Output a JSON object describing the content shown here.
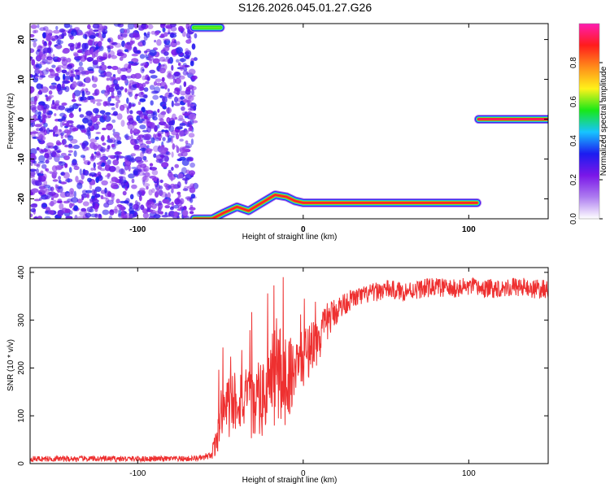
{
  "title": "S126.2026.045.01.27.G26",
  "chart_data": [
    {
      "type": "heatmap",
      "xlabel": "Height of straight line (km)",
      "ylabel": "Frequency (Hz)",
      "xlim": [
        -165,
        148
      ],
      "ylim": [
        -25,
        24
      ],
      "xticks": [
        -100,
        0,
        100
      ],
      "xtick_labels": [
        "-100",
        "0",
        "100"
      ],
      "yticks": [
        -20,
        -10,
        0,
        10,
        20
      ],
      "ytick_labels": [
        "-20",
        "-10",
        "0",
        "10",
        "20"
      ],
      "colorbar": {
        "label": "Normalized spectral amplitude",
        "range": [
          0,
          1
        ],
        "ticks": [
          0.0,
          0.2,
          0.4,
          0.6,
          0.8
        ],
        "tick_labels": [
          "0.0",
          "0.2",
          "0.4",
          "0.6",
          "0.8"
        ],
        "colors": [
          "#ffffff",
          "#ad7cf0",
          "#7a17e8",
          "#1c1cf0",
          "#17c4ff",
          "#18e818",
          "#fff21a",
          "#ff8c1a",
          "#ff1c1c",
          "#ff1cb2"
        ]
      },
      "features": [
        {
          "name": "noise",
          "x_range": [
            -165,
            -65
          ],
          "y_range": [
            -25,
            24
          ],
          "level": 0.18
        },
        {
          "name": "trace",
          "points": [
            [
              -66,
              -25
            ],
            [
              -55,
              -25
            ],
            [
              -48,
              -23.5
            ],
            [
              -40,
              -22
            ],
            [
              -33,
              -23
            ],
            [
              -25,
              -21
            ],
            [
              -17,
              -19
            ],
            [
              -10,
              -19.5
            ],
            [
              -5,
              -20.5
            ],
            [
              0,
              -21
            ],
            [
              10,
              -21
            ],
            [
              30,
              -21
            ],
            [
              55,
              -21
            ],
            [
              65,
              -21
            ],
            [
              105,
              -21
            ]
          ],
          "level": 0.85
        },
        {
          "name": "trace",
          "points": [
            [
              106,
              0
            ],
            [
              148,
              0
            ]
          ],
          "level": 0.9
        },
        {
          "name": "trace",
          "points": [
            [
              -66,
              23
            ],
            [
              -50,
              23
            ]
          ],
          "level": 0.55
        }
      ]
    },
    {
      "type": "line",
      "xlabel": "Height of straight line (km)",
      "ylabel": "SNR (10 * v/v)",
      "xlim": [
        -165,
        148
      ],
      "ylim": [
        0,
        410
      ],
      "xticks": [
        -100,
        0,
        100
      ],
      "xtick_labels": [
        "-100",
        "0",
        "100"
      ],
      "yticks": [
        0,
        100,
        200,
        300,
        400
      ],
      "ytick_labels": [
        "0",
        "100",
        "200",
        "300",
        "400"
      ],
      "line_color": "#ee3030",
      "x": [
        -165,
        -150,
        -130,
        -110,
        -90,
        -70,
        -60,
        -55,
        -52,
        -50,
        -45,
        -40,
        -35,
        -30,
        -25,
        -20,
        -15,
        -13,
        -10,
        -5,
        0,
        5,
        10,
        15,
        20,
        25,
        30,
        40,
        50,
        60,
        70,
        80,
        90,
        100,
        110,
        120,
        130,
        140,
        148
      ],
      "y": [
        10,
        10,
        10,
        10,
        10,
        10,
        12,
        15,
        60,
        100,
        120,
        140,
        130,
        120,
        130,
        170,
        190,
        180,
        180,
        200,
        220,
        250,
        260,
        300,
        320,
        335,
        345,
        355,
        365,
        360,
        365,
        370,
        365,
        370,
        365,
        368,
        370,
        365,
        365
      ],
      "noise_amplitude": [
        6,
        6,
        6,
        6,
        6,
        6,
        6,
        10,
        40,
        60,
        70,
        70,
        70,
        70,
        80,
        100,
        120,
        100,
        100,
        60,
        60,
        60,
        50,
        40,
        30,
        25,
        20,
        20,
        20,
        20,
        20,
        20,
        20,
        20,
        20,
        20,
        20,
        20,
        20
      ]
    }
  ]
}
